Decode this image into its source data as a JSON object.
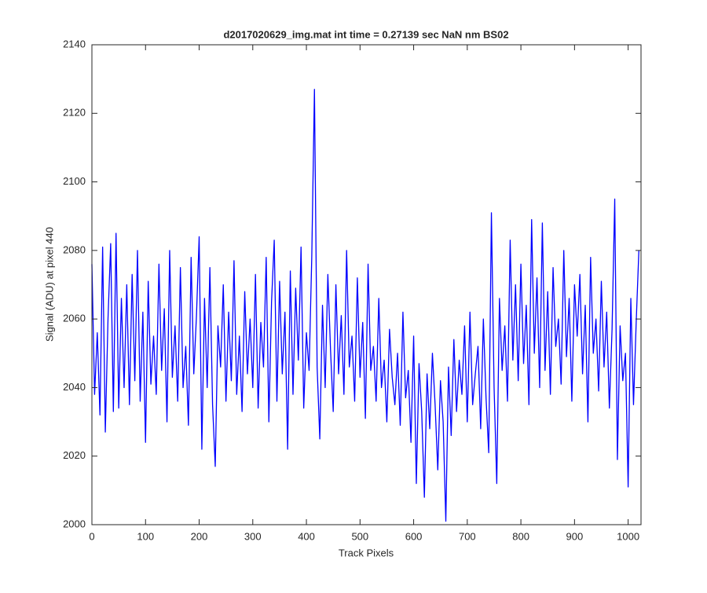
{
  "chart_data": {
    "type": "line",
    "title": "d2017020629_img.mat int time = 0.27139 sec  NaN nm BS02",
    "xlabel": "Track Pixels",
    "ylabel": "Signal (ADU) at pixel 440",
    "color": "#0000ff",
    "xlim": [
      0,
      1024
    ],
    "ylim": [
      2000,
      2140
    ],
    "xticks": [
      0,
      100,
      200,
      300,
      400,
      500,
      600,
      700,
      800,
      900,
      1000
    ],
    "yticks": [
      2000,
      2020,
      2040,
      2060,
      2080,
      2100,
      2120,
      2140
    ],
    "x": [
      0,
      5,
      10,
      15,
      20,
      25,
      30,
      35,
      40,
      45,
      50,
      55,
      60,
      65,
      70,
      75,
      80,
      85,
      90,
      95,
      100,
      105,
      110,
      115,
      120,
      125,
      130,
      135,
      140,
      145,
      150,
      155,
      160,
      165,
      170,
      175,
      180,
      185,
      190,
      195,
      200,
      205,
      210,
      215,
      220,
      225,
      230,
      235,
      240,
      245,
      250,
      255,
      260,
      265,
      270,
      275,
      280,
      285,
      290,
      295,
      300,
      305,
      310,
      315,
      320,
      325,
      330,
      335,
      340,
      345,
      350,
      355,
      360,
      365,
      370,
      375,
      380,
      385,
      390,
      395,
      400,
      405,
      410,
      415,
      420,
      425,
      430,
      435,
      440,
      445,
      450,
      455,
      460,
      465,
      470,
      475,
      480,
      485,
      490,
      495,
      500,
      505,
      510,
      515,
      520,
      525,
      530,
      535,
      540,
      545,
      550,
      555,
      560,
      565,
      570,
      575,
      580,
      585,
      590,
      595,
      600,
      605,
      610,
      615,
      620,
      625,
      630,
      635,
      640,
      645,
      650,
      655,
      660,
      665,
      670,
      675,
      680,
      685,
      690,
      695,
      700,
      705,
      710,
      715,
      720,
      725,
      730,
      735,
      740,
      745,
      750,
      755,
      760,
      765,
      770,
      775,
      780,
      785,
      790,
      795,
      800,
      805,
      810,
      815,
      820,
      825,
      830,
      835,
      840,
      845,
      850,
      855,
      860,
      865,
      870,
      875,
      880,
      885,
      890,
      895,
      900,
      905,
      910,
      915,
      920,
      925,
      930,
      935,
      940,
      945,
      950,
      955,
      960,
      965,
      970,
      975,
      980,
      985,
      990,
      995,
      1000,
      1005,
      1010,
      1015,
      1020
    ],
    "values": [
      2076,
      2038,
      2056,
      2032,
      2081,
      2027,
      2060,
      2082,
      2033,
      2085,
      2034,
      2066,
      2040,
      2070,
      2035,
      2073,
      2042,
      2080,
      2036,
      2062,
      2024,
      2071,
      2041,
      2055,
      2038,
      2076,
      2045,
      2063,
      2030,
      2080,
      2043,
      2058,
      2036,
      2075,
      2040,
      2052,
      2029,
      2078,
      2044,
      2061,
      2084,
      2022,
      2066,
      2040,
      2075,
      2035,
      2017,
      2058,
      2046,
      2070,
      2036,
      2062,
      2042,
      2077,
      2038,
      2055,
      2033,
      2068,
      2044,
      2060,
      2040,
      2073,
      2034,
      2059,
      2046,
      2078,
      2030,
      2065,
      2083,
      2036,
      2071,
      2044,
      2062,
      2022,
      2074,
      2038,
      2069,
      2048,
      2081,
      2034,
      2056,
      2045,
      2078,
      2127,
      2046,
      2025,
      2064,
      2040,
      2073,
      2051,
      2033,
      2070,
      2044,
      2061,
      2038,
      2080,
      2046,
      2055,
      2036,
      2072,
      2043,
      2059,
      2031,
      2076,
      2045,
      2052,
      2036,
      2066,
      2040,
      2048,
      2030,
      2057,
      2043,
      2035,
      2050,
      2029,
      2062,
      2037,
      2045,
      2024,
      2055,
      2012,
      2047,
      2033,
      2008,
      2044,
      2028,
      2050,
      2035,
      2016,
      2042,
      2030,
      2001,
      2046,
      2026,
      2054,
      2033,
      2048,
      2038,
      2058,
      2030,
      2062,
      2035,
      2044,
      2052,
      2028,
      2060,
      2037,
      2021,
      2091,
      2040,
      2012,
      2066,
      2045,
      2058,
      2036,
      2083,
      2048,
      2070,
      2042,
      2076,
      2047,
      2064,
      2035,
      2089,
      2050,
      2072,
      2040,
      2088,
      2045,
      2068,
      2038,
      2075,
      2052,
      2060,
      2041,
      2080,
      2049,
      2066,
      2036,
      2070,
      2055,
      2073,
      2044,
      2064,
      2030,
      2078,
      2050,
      2060,
      2039,
      2071,
      2046,
      2062,
      2034,
      2057,
      2095,
      2019,
      2058,
      2042,
      2050,
      2011,
      2066,
      2035,
      2059,
      2080
    ]
  }
}
